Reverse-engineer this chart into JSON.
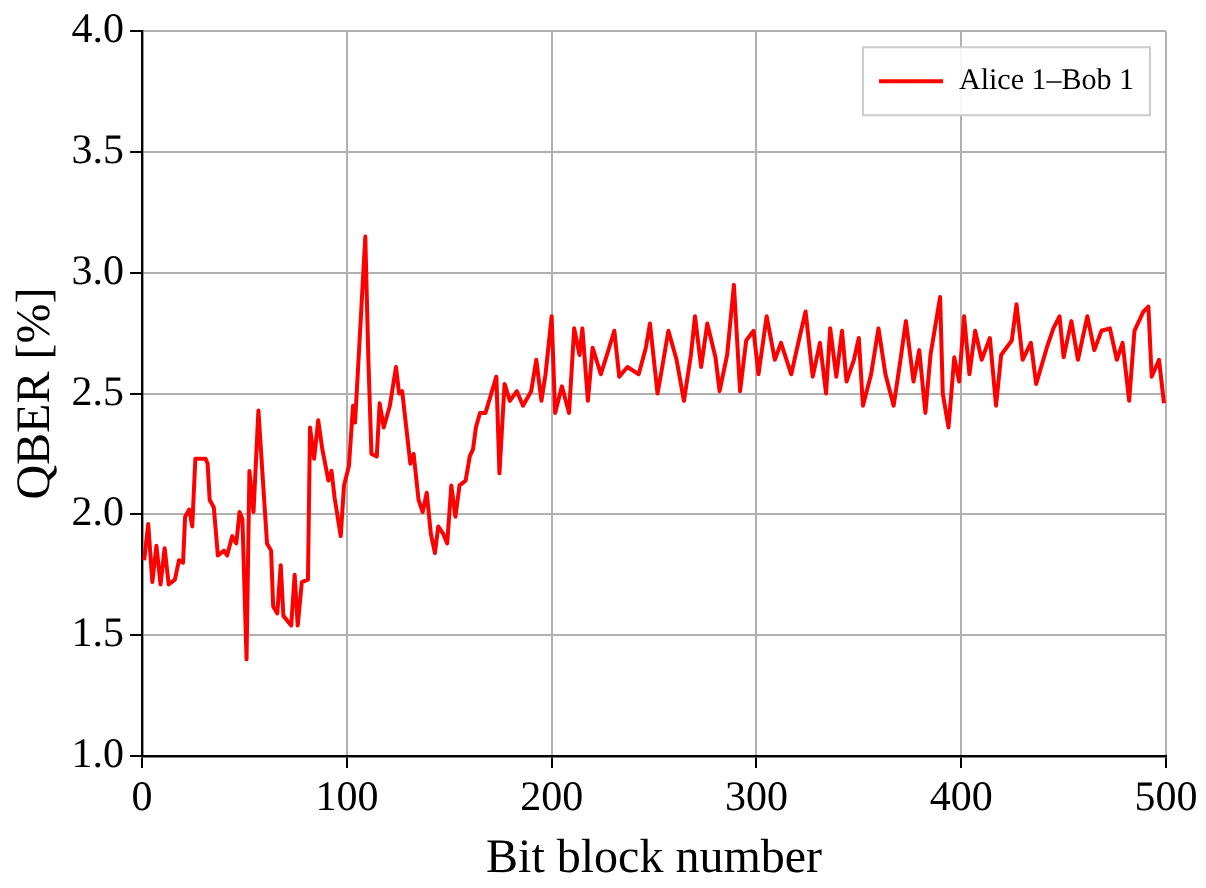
{
  "chart_data": {
    "type": "line",
    "xlabel": "Bit block number",
    "ylabel": "QBER [%]",
    "xlim": [
      0,
      500
    ],
    "xticks": [
      0,
      100,
      200,
      300,
      400,
      500
    ],
    "ylim": [
      1.0,
      4.0
    ],
    "yticks": [
      {
        "value": 1.0,
        "label": "1.0"
      },
      {
        "value": 1.5,
        "label": "1.5"
      },
      {
        "value": 2.0,
        "label": "2.0"
      },
      {
        "value": 2.5,
        "label": "2.5"
      },
      {
        "value": 3.0,
        "label": "3.0"
      },
      {
        "value": 3.5,
        "label": "3.5"
      },
      {
        "value": 4.0,
        "label": "4.0"
      }
    ],
    "grid": true,
    "legend": "top right",
    "marker": "none",
    "line_style": "solid",
    "series": [
      {
        "name": "Alice 1–Bob 1",
        "color": "#ff0000",
        "x": [
          1,
          3,
          5,
          7,
          9,
          11,
          13,
          16,
          18,
          20,
          21,
          23,
          24.5,
          26,
          31,
          32,
          33,
          35,
          37,
          40,
          41.5,
          44,
          46,
          47.6,
          49,
          51,
          52.4,
          54.4,
          56.8,
          59,
          61,
          63,
          64,
          66,
          67.7,
          69,
          72.8,
          74.5,
          76,
          78,
          81,
          82,
          84,
          86,
          88,
          91,
          92.5,
          94,
          97,
          98.6,
          101,
          103,
          104,
          109,
          110.5,
          112,
          114.6,
          116,
          118,
          121,
          124,
          125.5,
          127,
          129,
          131,
          132.6,
          135,
          137,
          139,
          141,
          143,
          144.6,
          147,
          149,
          151,
          153,
          155,
          158,
          160,
          161.6,
          163,
          165,
          167.7,
          173,
          174.5,
          177,
          179.6,
          183,
          186,
          190,
          192.5,
          195,
          197,
          200,
          201.7,
          205,
          208.5,
          211,
          213.6,
          215,
          217.7,
          220,
          224,
          227,
          230.6,
          233,
          237,
          242.5,
          246,
          248,
          251.7,
          254,
          257,
          261,
          264.6,
          268,
          270,
          273,
          276,
          280,
          282,
          285.7,
          289,
          292,
          295,
          298.6,
          301,
          305,
          309,
          312,
          317,
          320.7,
          324,
          327.5,
          331,
          334,
          336,
          339,
          341.8,
          344,
          347.6,
          350,
          352,
          356,
          359.6,
          363,
          367,
          370,
          373,
          376.7,
          379.5,
          382.5,
          385,
          389.7,
          391,
          393.8,
          396.6,
          399,
          401.4,
          404,
          406.8,
          410,
          414,
          417,
          419.5,
          424.7,
          427,
          430,
          434,
          436.6,
          441.8,
          445,
          448,
          450,
          453.8,
          457,
          461.6,
          465,
          468.5,
          472.6,
          476,
          478.8,
          482,
          484.6,
          489,
          491.4,
          493,
          496.6,
          499
        ],
        "values": [
          1.81,
          1.96,
          1.72,
          1.87,
          1.71,
          1.86,
          1.71,
          1.73,
          1.81,
          1.8,
          1.99,
          2.02,
          1.95,
          2.23,
          2.23,
          2.21,
          2.06,
          2.03,
          1.83,
          1.85,
          1.83,
          1.91,
          1.88,
          2.01,
          1.98,
          1.4,
          2.18,
          2.01,
          2.43,
          2.14,
          1.88,
          1.85,
          1.62,
          1.59,
          1.79,
          1.58,
          1.54,
          1.75,
          1.54,
          1.72,
          1.73,
          2.36,
          2.23,
          2.39,
          2.27,
          2.14,
          2.18,
          2.07,
          1.91,
          2.12,
          2.2,
          2.45,
          2.38,
          3.15,
          2.64,
          2.25,
          2.24,
          2.46,
          2.36,
          2.45,
          2.61,
          2.5,
          2.51,
          2.36,
          2.21,
          2.25,
          2.06,
          2.01,
          2.09,
          1.92,
          1.84,
          1.95,
          1.92,
          1.88,
          2.12,
          1.99,
          2.12,
          2.14,
          2.24,
          2.27,
          2.36,
          2.42,
          2.42,
          2.57,
          2.17,
          2.54,
          2.47,
          2.51,
          2.45,
          2.51,
          2.64,
          2.47,
          2.58,
          2.82,
          2.42,
          2.53,
          2.42,
          2.77,
          2.66,
          2.77,
          2.47,
          2.69,
          2.58,
          2.66,
          2.76,
          2.57,
          2.61,
          2.58,
          2.69,
          2.79,
          2.5,
          2.61,
          2.76,
          2.64,
          2.47,
          2.66,
          2.82,
          2.61,
          2.79,
          2.65,
          2.51,
          2.66,
          2.95,
          2.51,
          2.72,
          2.76,
          2.58,
          2.82,
          2.64,
          2.71,
          2.58,
          2.72,
          2.84,
          2.57,
          2.71,
          2.5,
          2.77,
          2.57,
          2.76,
          2.55,
          2.64,
          2.73,
          2.45,
          2.58,
          2.77,
          2.58,
          2.45,
          2.62,
          2.8,
          2.55,
          2.68,
          2.42,
          2.66,
          2.9,
          2.5,
          2.36,
          2.65,
          2.55,
          2.82,
          2.58,
          2.76,
          2.64,
          2.73,
          2.45,
          2.66,
          2.72,
          2.87,
          2.64,
          2.71,
          2.54,
          2.69,
          2.77,
          2.82,
          2.65,
          2.8,
          2.64,
          2.82,
          2.68,
          2.76,
          2.77,
          2.64,
          2.71,
          2.47,
          2.76,
          2.84,
          2.86,
          2.57,
          2.64,
          2.46
        ]
      }
    ]
  }
}
